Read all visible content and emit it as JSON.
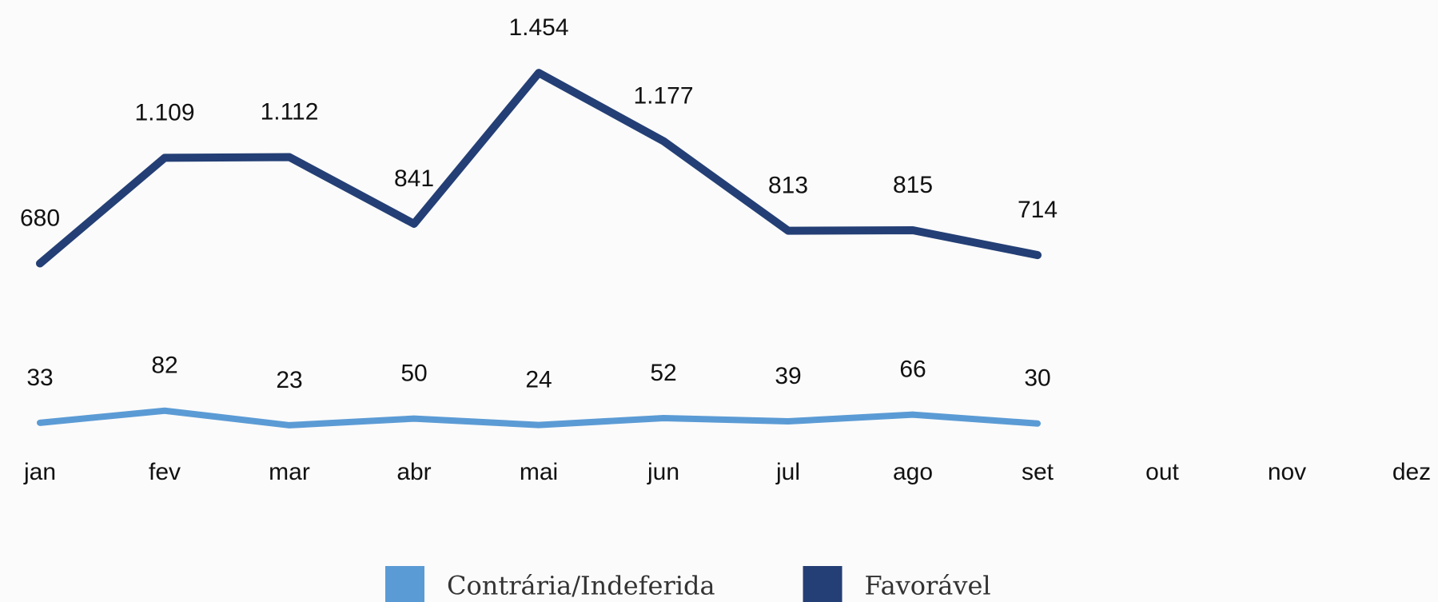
{
  "chart_data": {
    "type": "line",
    "categories": [
      "jan",
      "fev",
      "mar",
      "abr",
      "mai",
      "jun",
      "jul",
      "ago",
      "set",
      "out",
      "nov",
      "dez"
    ],
    "series": [
      {
        "name": "Contrária/Indeferida",
        "color": "#5b9bd5",
        "values": [
          33,
          82,
          23,
          50,
          24,
          52,
          39,
          66,
          30,
          null,
          null,
          null
        ]
      },
      {
        "name": "Favorável",
        "color": "#243f75",
        "values": [
          680,
          1109,
          1112,
          841,
          1454,
          1177,
          813,
          815,
          714,
          null,
          null,
          null
        ],
        "value_labels": [
          "680",
          "1.109",
          "1.112",
          "841",
          "1.454",
          "1.177",
          "813",
          "815",
          "714",
          null,
          null,
          null
        ]
      }
    ]
  }
}
